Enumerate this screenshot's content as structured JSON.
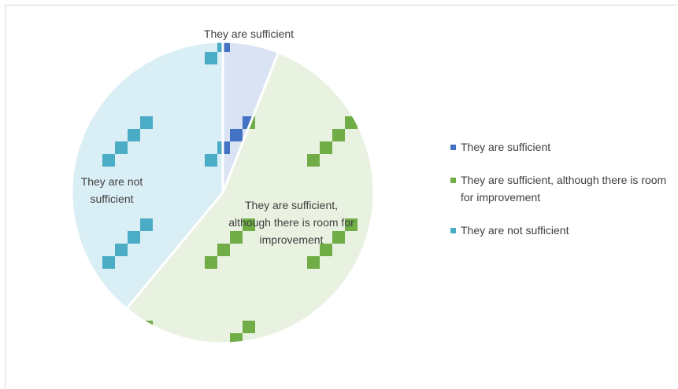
{
  "chart_data": {
    "type": "pie",
    "categories": [
      "They are sufficient",
      "They are sufficient, although there is room for improvement",
      "They are not sufficient"
    ],
    "values": [
      6,
      55,
      39
    ],
    "colors": [
      "#4472c4",
      "#70ad47",
      "#4bacc6"
    ],
    "fills": [
      "#dae3f3",
      "#e9f2e1",
      "#daeef5"
    ],
    "legend": "right"
  }
}
